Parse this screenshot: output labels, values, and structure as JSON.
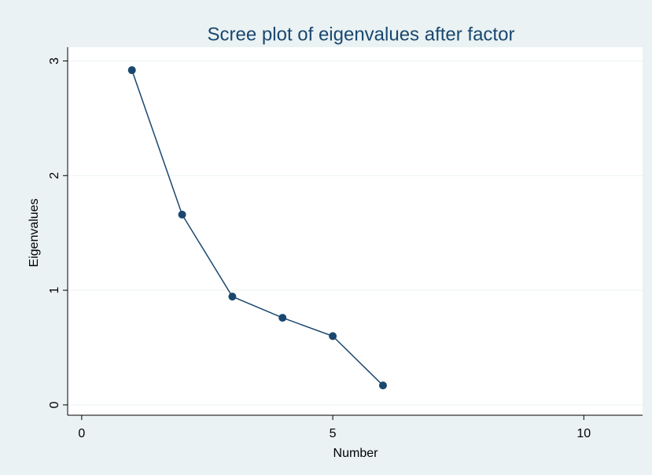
{
  "chart_data": {
    "type": "line",
    "title": "Scree plot of eigenvalues after factor",
    "x_label": "Number",
    "y_label": "Eigenvalues",
    "x": [
      1,
      2,
      3,
      4,
      5,
      6
    ],
    "values": [
      2.92,
      1.66,
      0.945,
      0.76,
      0.6,
      0.17
    ],
    "color": "#1a476f",
    "xlim": [
      -0.28,
      11.17
    ],
    "xticks": [
      0,
      5,
      10
    ],
    "ylim": [
      -0.09,
      3.12
    ],
    "yticks": [
      0,
      1,
      2,
      3
    ],
    "grid": true,
    "markers": true
  }
}
